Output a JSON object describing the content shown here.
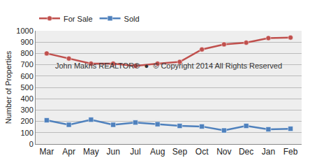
{
  "chart_data": {
    "type": "line",
    "y_label": "Number of Properties",
    "annotations": [
      "John Makris REALTOR®  ●  © Copyright 2014 All Rights Reserved"
    ],
    "categories": [
      "Mar",
      "Apr",
      "May",
      "Jun",
      "Jul",
      "Aug",
      "Sep",
      "Oct",
      "Nov",
      "Dec",
      "Jan",
      "Feb"
    ],
    "series": [
      {
        "name": "For Sale",
        "color": "#c0504d",
        "marker": "circle",
        "line_style": "solid",
        "values": [
          800,
          755,
          710,
          710,
          690,
          710,
          725,
          835,
          880,
          895,
          935,
          940
        ]
      },
      {
        "name": "Sold",
        "color": "#4f81bd",
        "marker": "square",
        "line_style": "solid",
        "values": [
          210,
          170,
          215,
          170,
          190,
          175,
          160,
          155,
          120,
          160,
          130,
          135
        ]
      }
    ],
    "ylim": [
      0,
      1000
    ],
    "yticks": [
      0,
      100,
      200,
      300,
      400,
      500,
      600,
      700,
      800,
      900,
      1000
    ],
    "grid": true,
    "legend": "top left"
  }
}
